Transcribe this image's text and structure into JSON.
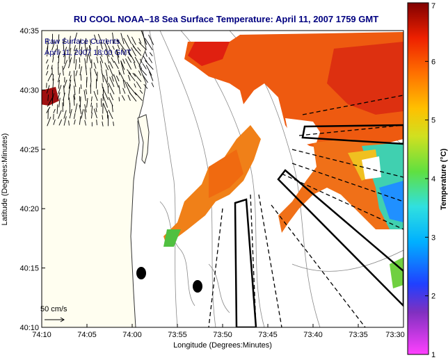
{
  "title": "RU COOL  NOAA–18  Sea Surface Temperature:  April 11, 2007 1759 GMT",
  "subtitle_lines": [
    "Raw Surface Currents",
    "April 11, 2007 18:00 GMT"
  ],
  "axes": {
    "xlabel": "Longitude (Degrees:Minutes)",
    "ylabel": "Latitude (Degrees:Minutes)",
    "x_ticks": [
      "74:10",
      "74:05",
      "74:00",
      "73:55",
      "73:50",
      "73:45",
      "73:40",
      "73:35",
      "73:30"
    ],
    "y_ticks": [
      "40:35",
      "40:30",
      "40:25",
      "40:20",
      "40:15",
      "40:10"
    ]
  },
  "colorbar": {
    "label": "Temperature (°C)",
    "min": 1,
    "max": 7,
    "ticks": [
      "1",
      "2",
      "3",
      "4",
      "5",
      "6",
      "7"
    ]
  },
  "scale_label": "50 cm/s",
  "colors": {
    "land": "#fffef0",
    "title": "#000080",
    "sst_hot": "#cc2200",
    "sst_warm": "#ee7a10"
  }
}
